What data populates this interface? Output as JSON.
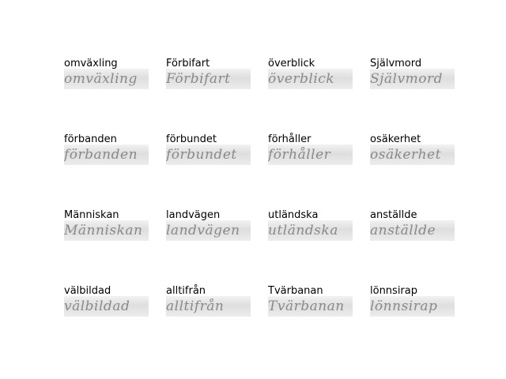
{
  "samples": [
    {
      "label": "omväxling",
      "handwriting": "omväxling"
    },
    {
      "label": "Förbifart",
      "handwriting": "Förbifart"
    },
    {
      "label": "överblick",
      "handwriting": "överblick"
    },
    {
      "label": "Självmord",
      "handwriting": "Självmord"
    },
    {
      "label": "förbanden",
      "handwriting": "förbanden"
    },
    {
      "label": "förbundet",
      "handwriting": "förbundet"
    },
    {
      "label": "förhåller",
      "handwriting": "förhåller"
    },
    {
      "label": "osäkerhet",
      "handwriting": "osäkerhet"
    },
    {
      "label": "Människan",
      "handwriting": "Människan"
    },
    {
      "label": "landvägen",
      "handwriting": "landvägen"
    },
    {
      "label": "utländska",
      "handwriting": "utländska"
    },
    {
      "label": "anställde",
      "handwriting": "anställde"
    },
    {
      "label": "välbildad",
      "handwriting": "välbildad"
    },
    {
      "label": "alltifrån",
      "handwriting": "alltifrån"
    },
    {
      "label": "Tvärbanan",
      "handwriting": "Tvärbanan"
    },
    {
      "label": "lönnsirap",
      "handwriting": "lönnsirap"
    }
  ]
}
